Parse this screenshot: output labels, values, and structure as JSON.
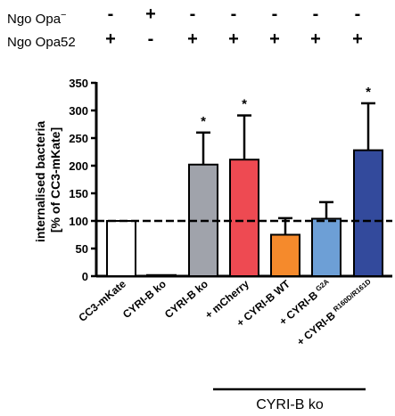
{
  "conditions": {
    "rows": [
      {
        "label": "Ngo Opa",
        "sup": "−",
        "signs": [
          "-",
          "+",
          "-",
          "-",
          "-",
          "-",
          "-"
        ]
      },
      {
        "label": "Ngo Opa52",
        "sup": "",
        "signs": [
          "+",
          "-",
          "+",
          "+",
          "+",
          "+",
          "+"
        ]
      }
    ]
  },
  "chart_data": {
    "type": "bar",
    "categories": [
      {
        "main": "CC3-mKate",
        "sub": ""
      },
      {
        "main": "CYRI-B ko",
        "sub": ""
      },
      {
        "main": "CYRI-B ko",
        "sub": ""
      },
      {
        "main": "+ mCherry",
        "sub": ""
      },
      {
        "main": "+ CYRI-B WT",
        "sub": ""
      },
      {
        "main": "+ CYRI-B",
        "sub": "G2A"
      },
      {
        "main": "+ CYRI-B",
        "sub": "R160D/R161D"
      }
    ],
    "values": [
      100,
      2,
      202,
      211,
      75,
      104,
      228
    ],
    "errors": [
      0,
      0,
      58,
      80,
      30,
      30,
      85
    ],
    "colors": [
      "#ffffff",
      "#ffffff",
      "#a0a3ab",
      "#ee4a52",
      "#f58a2c",
      "#6d9fd6",
      "#334a9c"
    ],
    "significance": [
      "",
      "",
      "*",
      "*",
      "",
      "",
      "*"
    ],
    "ylabel_line1": "internalised bacteria",
    "ylabel_line2": "[% of CC3-mKate]",
    "ylim": [
      0,
      350
    ],
    "yticks": [
      0,
      50,
      100,
      150,
      200,
      250,
      300,
      350
    ],
    "reference_line": 100,
    "bracket_label": "CYRI-B ko"
  }
}
